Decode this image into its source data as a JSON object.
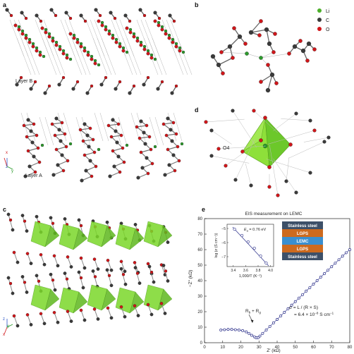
{
  "panels": {
    "a": {
      "label": "a",
      "layer_b_label": "Layer B",
      "layer_a_label": "Layer A",
      "axes": [
        "x",
        "z",
        "y"
      ]
    },
    "b": {
      "label": "b",
      "legend": [
        {
          "symbol": "Li",
          "color": "#4caf2a"
        },
        {
          "symbol": "C",
          "color": "#3a3a3a"
        },
        {
          "symbol": "O",
          "color": "#d0161a"
        }
      ]
    },
    "c": {
      "label": "c",
      "axes": [
        "z",
        "y",
        "x"
      ]
    },
    "d": {
      "label": "d",
      "atom_label": "O4"
    },
    "e": {
      "label": "e",
      "title": "EIS measurement on LEMC",
      "y_axis_label": "−Z′′ (kΩ)",
      "x_axis_label": "Z′ (kΩ)",
      "y_ticks": [
        "0",
        "10",
        "20",
        "30",
        "40",
        "50",
        "60",
        "70",
        "80"
      ],
      "x_ticks": [
        "0",
        "10",
        "20",
        "30",
        "40",
        "50",
        "60",
        "70",
        "80"
      ],
      "annotation_rb": "R",
      "annotation_rb_sub1": "b",
      "annotation_plus": " + R",
      "annotation_rb_sub2": "g",
      "sigma_line1": "σ = L / (R × S)",
      "sigma_line2": "= 6.4 × 10",
      "sigma_exp": "−8",
      "sigma_unit": " S cm",
      "sigma_unit_exp": "−1",
      "stack": [
        {
          "label": "Stainless steel",
          "color": "#3d5068"
        },
        {
          "label": "LGPS",
          "color": "#cd6a1e"
        },
        {
          "label": "LEMC",
          "color": "#3a8fd0"
        },
        {
          "label": "LGPS",
          "color": "#cd6a1e"
        },
        {
          "label": "Stainless steel",
          "color": "#3d5068"
        }
      ],
      "inset": {
        "ea_label": "E",
        "ea_sub": "a",
        "ea_value": " = 0.76 eV",
        "y_label": "log (σ (S cm⁻¹))",
        "x_label": "1,000/T (K⁻¹)",
        "x_ticks": [
          "3.4",
          "3.6",
          "3.8",
          "4.0"
        ],
        "y_ticks": [
          "−5",
          "−6",
          "−7"
        ]
      }
    }
  },
  "chart_data": {
    "type": "scatter",
    "title": "EIS measurement on LEMC",
    "xlabel": "Z′ (kΩ)",
    "ylabel": "−Z′′ (kΩ)",
    "xlim": [
      0,
      80
    ],
    "ylim": [
      0,
      80
    ],
    "series": [
      {
        "values_x": [
          9,
          11,
          13,
          15,
          17,
          19,
          21,
          23,
          24.5,
          26,
          27.5,
          28.5,
          29.5,
          30.5,
          32,
          34,
          36,
          38,
          40,
          42,
          44,
          46,
          48,
          50,
          52,
          54,
          56,
          58,
          60,
          62,
          64,
          66,
          68,
          70,
          72,
          74,
          76,
          78,
          80
        ],
        "values_y": [
          8.2,
          8.4,
          8.6,
          8.6,
          8.4,
          8.2,
          7.8,
          7.0,
          6.0,
          4.8,
          3.8,
          3.2,
          3.3,
          4.3,
          6.0,
          8.2,
          10.5,
          12.8,
          15.0,
          17.3,
          19.6,
          21.9,
          24.2,
          26.5,
          28.8,
          31.0,
          33.3,
          35.5,
          37.8,
          40.0,
          42.3,
          44.5,
          46.8,
          49.0,
          51.3,
          53.5,
          55.8,
          58.0,
          60.0
        ]
      }
    ],
    "inset": {
      "type": "scatter",
      "xlabel": "1,000/T (K⁻¹)",
      "ylabel": "log (σ (S cm⁻¹))",
      "xlim": [
        3.3,
        4.05
      ],
      "ylim": [
        -7.7,
        -4.7
      ],
      "x": [
        3.42,
        3.54,
        3.64,
        3.74,
        3.84,
        3.93
      ],
      "y": [
        -5.05,
        -5.5,
        -5.95,
        -6.4,
        -6.95,
        -7.45
      ],
      "fit": "Ea = 0.76 eV"
    }
  }
}
